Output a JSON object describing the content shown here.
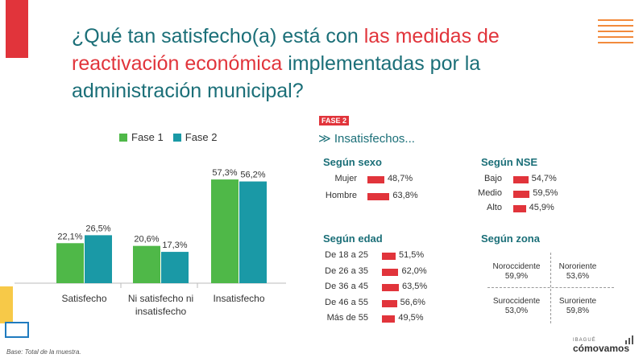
{
  "title": {
    "part1": "¿Qué tan satisfecho(a) está con ",
    "highlight": "las medidas de reactivación económica",
    "part2": " implementadas por la administración municipal?"
  },
  "colors": {
    "fase1": "#4fb848",
    "fase2": "#1a99a6",
    "accent": "#e1343b",
    "teal_text": "#1b6f78"
  },
  "chart_data": [
    {
      "type": "bar",
      "categories": [
        "Satisfecho",
        "Ni satisfecho ni insatisfecho",
        "Insatisfecho"
      ],
      "series": [
        {
          "name": "Fase 1",
          "values": [
            22.1,
            20.6,
            57.3
          ],
          "labels": [
            "22,1%",
            "20,6%",
            "57,3%"
          ]
        },
        {
          "name": "Fase 2",
          "values": [
            26.5,
            17.3,
            56.2
          ],
          "labels": [
            "26,5%",
            "17,3%",
            "56,2%"
          ]
        }
      ],
      "ylim": [
        0,
        60
      ],
      "legend": "top"
    },
    {
      "type": "bar",
      "orientation": "horizontal",
      "title": "Según sexo",
      "categories": [
        "Mujer",
        "Hombre"
      ],
      "values": [
        48.7,
        63.8
      ],
      "labels": [
        "48,7%",
        "63,8%"
      ]
    },
    {
      "type": "bar",
      "orientation": "horizontal",
      "title": "Según NSE",
      "categories": [
        "Bajo",
        "Medio",
        "Alto"
      ],
      "values": [
        54.7,
        59.5,
        45.9
      ],
      "labels": [
        "54,7%",
        "59,5%",
        "45,9%"
      ]
    },
    {
      "type": "bar",
      "orientation": "horizontal",
      "title": "Según edad",
      "categories": [
        "De 18 a 25",
        "De 26 a 35",
        "De 36 a 45",
        "De 46 a 55",
        "Más de 55"
      ],
      "values": [
        51.5,
        62.0,
        63.5,
        56.6,
        49.5
      ],
      "labels": [
        "51,5%",
        "62,0%",
        "63,5%",
        "56,6%",
        "49,5%"
      ]
    },
    {
      "type": "table",
      "title": "Según zona",
      "zones": [
        {
          "name": "Noroccidente",
          "value": "59,9%"
        },
        {
          "name": "Nororiente",
          "value": "53,6%"
        },
        {
          "name": "Suroccidente",
          "value": "53,0%"
        },
        {
          "name": "Suroriente",
          "value": "59,8%"
        }
      ]
    }
  ],
  "panel": {
    "badge": "FASE 2",
    "heading": "≫ Insatisfechos..."
  },
  "footer": {
    "base": "Base: Total de la muestra.",
    "brand_city": "IBAGUÉ",
    "brand_name": "cómovamos"
  }
}
